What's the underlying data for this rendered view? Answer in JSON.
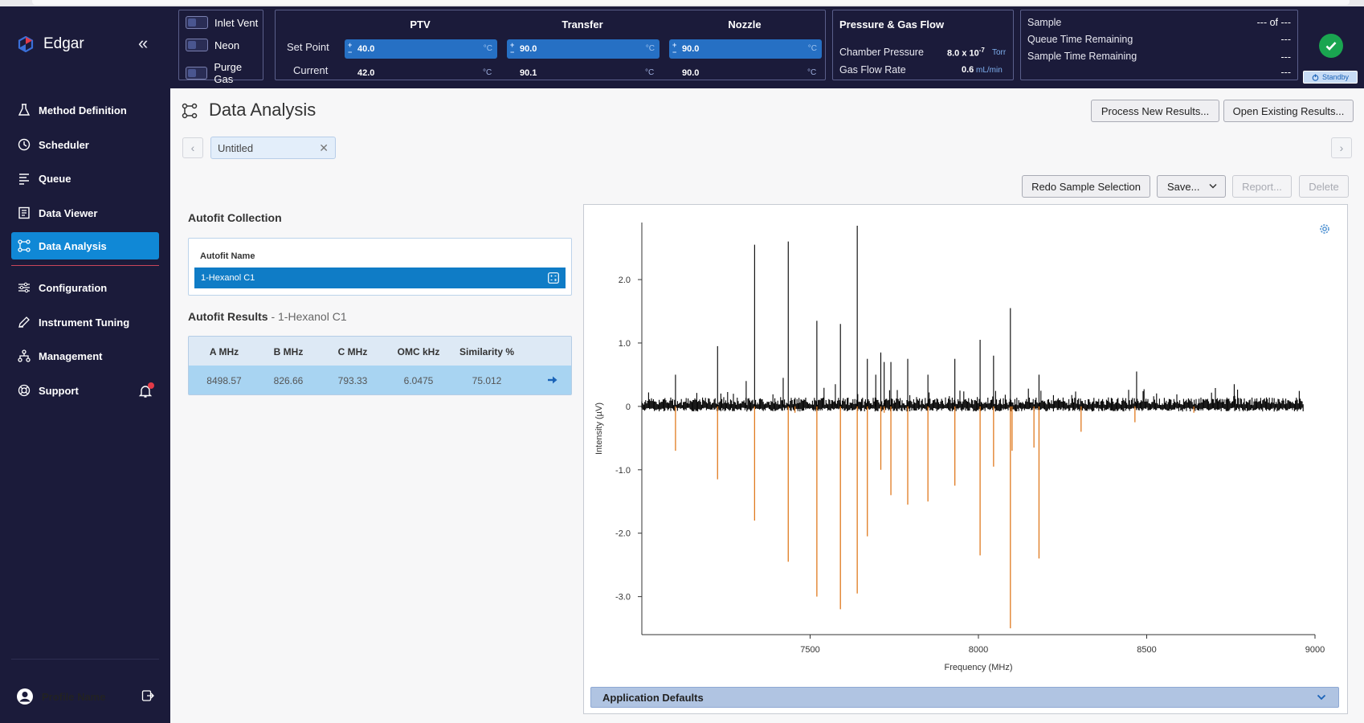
{
  "app": {
    "name": "Edgar"
  },
  "sidebar": {
    "items": [
      {
        "label": "Method Definition",
        "icon": "flask-icon"
      },
      {
        "label": "Scheduler",
        "icon": "clock-icon"
      },
      {
        "label": "Queue",
        "icon": "list-icon"
      },
      {
        "label": "Data Viewer",
        "icon": "document-icon"
      },
      {
        "label": "Data Analysis",
        "icon": "graph-nodes-icon",
        "active": true
      },
      {
        "label": "Configuration",
        "icon": "sliders-icon"
      },
      {
        "label": "Instrument Tuning",
        "icon": "pen-icon"
      },
      {
        "label": "Management",
        "icon": "hierarchy-icon"
      },
      {
        "label": "Support",
        "icon": "lifebuoy-icon"
      }
    ],
    "profile": "Profile Name"
  },
  "header": {
    "gases": [
      "Inlet Vent",
      "Neon",
      "Purge Gas"
    ],
    "temps": {
      "columns": [
        "PTV",
        "Transfer",
        "Nozzle"
      ],
      "setpoint_label": "Set Point",
      "current_label": "Current",
      "setpoints": [
        "40.0",
        "90.0",
        "90.0"
      ],
      "currents": [
        "42.0",
        "90.1",
        "90.0"
      ],
      "unit": "°C"
    },
    "pressure": {
      "title": "Pressure & Gas Flow",
      "chamber_label": "Chamber Pressure",
      "chamber_value": "8.0 x 10",
      "chamber_exp": "-7",
      "chamber_unit": "Torr",
      "flow_label": "Gas Flow Rate",
      "flow_value": "0.6",
      "flow_unit": "mL/min"
    },
    "sample": {
      "sample_label": "Sample",
      "sample_value": "--- of ---",
      "queue_label": "Queue Time Remaining",
      "queue_value": "---",
      "sample_time_label": "Sample Time Remaining",
      "sample_time_value": "---",
      "extra_value": "---"
    },
    "status": {
      "standby_label": "Standby",
      "ok_color": "#1aa550"
    }
  },
  "main": {
    "title": "Data Analysis",
    "process_button": "Process New Results...",
    "open_button": "Open Existing Results...",
    "tab_label": "Untitled",
    "redo_button": "Redo Sample Selection",
    "save_button": "Save...",
    "report_button": "Report...",
    "delete_button": "Delete",
    "autofit_title": "Autofit Collection",
    "autofit_col": "Autofit Name",
    "autofit_item": "1-Hexanol C1",
    "results_title": "Autofit Results",
    "results_sub": " - 1-Hexanol C1",
    "results_headers": [
      "A MHz",
      "B MHz",
      "C MHz",
      "OMC kHz",
      "Similarity %"
    ],
    "results_row": [
      "8498.57",
      "826.66",
      "793.33",
      "6.0475",
      "75.012"
    ],
    "app_defaults": "Application Defaults"
  },
  "chart_data": {
    "type": "line",
    "xlabel": "Frequency (MHz)",
    "ylabel": "Intensity (µV)",
    "xlim": [
      7000,
      9000
    ],
    "ylim": [
      -3.6,
      2.9
    ],
    "xticks": [
      7500,
      8000,
      8500,
      9000
    ],
    "yticks": [
      2.0,
      1.0,
      0,
      -1.0,
      -2.0,
      -3.0
    ],
    "ytick_labels": [
      "2.0",
      "1.0",
      "0",
      "-1.0",
      "-2.0",
      "-3.0"
    ],
    "colors": {
      "experimental": "#000000",
      "fit": "#e07a1f"
    },
    "experimental_peaks": [
      {
        "x": 7100,
        "y": 0.5
      },
      {
        "x": 7225,
        "y": 0.95
      },
      {
        "x": 7310,
        "y": 0.4
      },
      {
        "x": 7335,
        "y": 2.55
      },
      {
        "x": 7420,
        "y": 0.45
      },
      {
        "x": 7435,
        "y": 2.6
      },
      {
        "x": 7520,
        "y": 1.35
      },
      {
        "x": 7575,
        "y": 0.35
      },
      {
        "x": 7590,
        "y": 1.3
      },
      {
        "x": 7640,
        "y": 2.85
      },
      {
        "x": 7670,
        "y": 0.75
      },
      {
        "x": 7695,
        "y": 0.5
      },
      {
        "x": 7710,
        "y": 0.85
      },
      {
        "x": 7720,
        "y": 0.7
      },
      {
        "x": 7740,
        "y": 0.7
      },
      {
        "x": 7790,
        "y": 0.75
      },
      {
        "x": 7850,
        "y": 0.5
      },
      {
        "x": 7930,
        "y": 0.75
      },
      {
        "x": 8005,
        "y": 1.05
      },
      {
        "x": 8045,
        "y": 0.8
      },
      {
        "x": 8095,
        "y": 1.55
      },
      {
        "x": 8180,
        "y": 0.5
      },
      {
        "x": 8470,
        "y": 0.55
      },
      {
        "x": 8760,
        "y": 0.35
      }
    ],
    "fit_peaks": [
      {
        "x": 7100,
        "y": -0.7
      },
      {
        "x": 7225,
        "y": -1.15
      },
      {
        "x": 7335,
        "y": -1.8
      },
      {
        "x": 7435,
        "y": -2.45
      },
      {
        "x": 7455,
        "y": -0.1
      },
      {
        "x": 7520,
        "y": -3.0
      },
      {
        "x": 7590,
        "y": -3.2
      },
      {
        "x": 7640,
        "y": -2.95
      },
      {
        "x": 7670,
        "y": -2.05
      },
      {
        "x": 7710,
        "y": -1.0
      },
      {
        "x": 7720,
        "y": -0.1
      },
      {
        "x": 7740,
        "y": -1.4
      },
      {
        "x": 7790,
        "y": -1.55
      },
      {
        "x": 7850,
        "y": -1.5
      },
      {
        "x": 7930,
        "y": -1.25
      },
      {
        "x": 8005,
        "y": -2.35
      },
      {
        "x": 8045,
        "y": -0.95
      },
      {
        "x": 8095,
        "y": -3.5
      },
      {
        "x": 8100,
        "y": -0.7
      },
      {
        "x": 8165,
        "y": -0.65
      },
      {
        "x": 8180,
        "y": -2.4
      },
      {
        "x": 8305,
        "y": -0.4
      },
      {
        "x": 8465,
        "y": -0.25
      },
      {
        "x": 8640,
        "y": -0.1
      }
    ]
  }
}
